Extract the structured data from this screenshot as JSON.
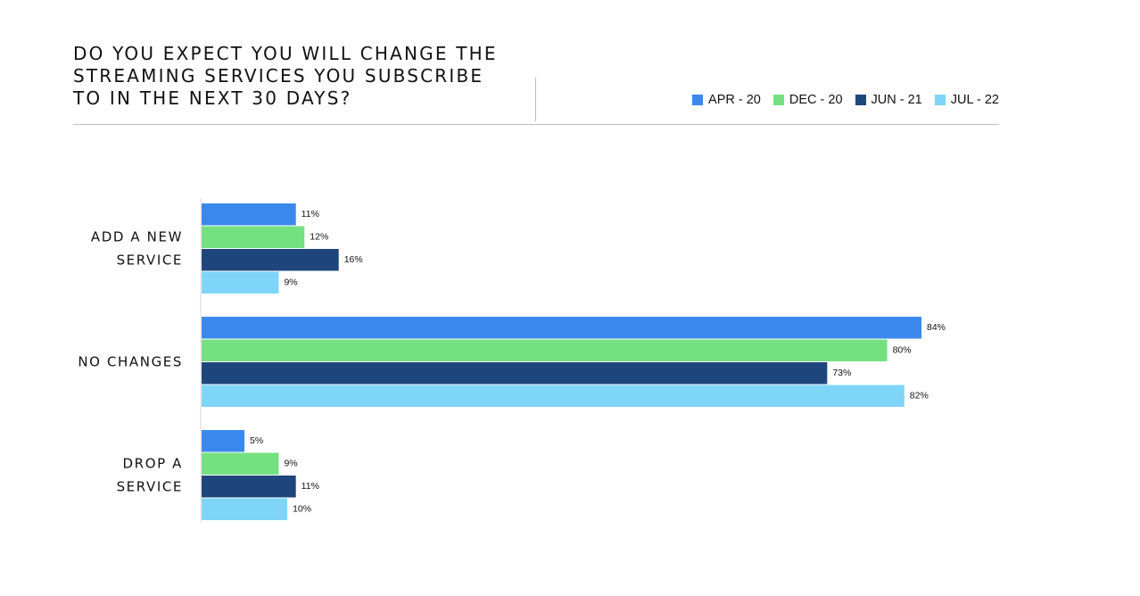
{
  "chart_data": {
    "type": "bar",
    "orientation": "horizontal",
    "title_lines": [
      "DO YOU EXPECT YOU WILL CHANGE THE",
      "STREAMING SERVICES YOU SUBSCRIBE",
      "TO IN THE NEXT 30 DAYS?"
    ],
    "categories": [
      [
        "ADD A NEW",
        "SERVICE"
      ],
      [
        "NO CHANGES"
      ],
      [
        "DROP A",
        "SERVICE"
      ]
    ],
    "series": [
      {
        "name": "APR - 20",
        "color": "#3b88ec",
        "values": [
          11,
          84,
          5
        ],
        "labels": [
          "11%",
          "84%",
          "5%"
        ]
      },
      {
        "name": "DEC - 20",
        "color": "#74e07f",
        "values": [
          12,
          80,
          9
        ],
        "labels": [
          "12%",
          "80%",
          "9%"
        ]
      },
      {
        "name": "JUN - 21",
        "color": "#1e467c",
        "values": [
          16,
          73,
          11
        ],
        "labels": [
          "16%",
          "73%",
          "11%"
        ]
      },
      {
        "name": "JUL - 22",
        "color": "#7fd5f8",
        "values": [
          9,
          82,
          10
        ],
        "labels": [
          "9%",
          "82%",
          "10%"
        ]
      }
    ],
    "xlim": [
      0,
      84
    ],
    "legend_position": "top-right",
    "grid": false
  }
}
